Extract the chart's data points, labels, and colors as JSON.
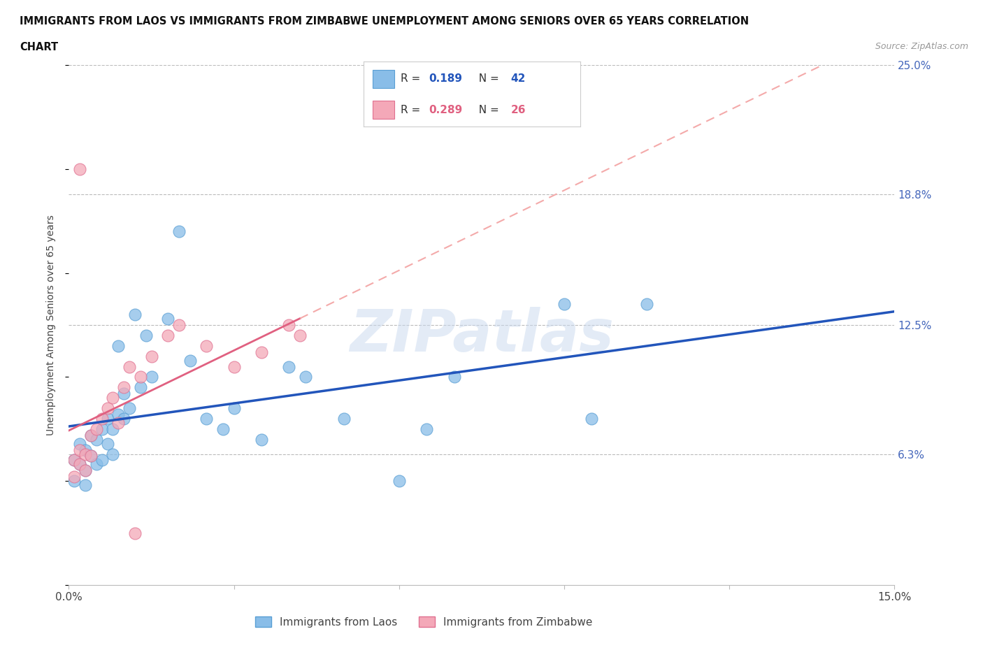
{
  "title_line1": "IMMIGRANTS FROM LAOS VS IMMIGRANTS FROM ZIMBABWE UNEMPLOYMENT AMONG SENIORS OVER 65 YEARS CORRELATION",
  "title_line2": "CHART",
  "source": "Source: ZipAtlas.com",
  "ylabel": "Unemployment Among Seniors over 65 years",
  "xlim": [
    0.0,
    0.15
  ],
  "ylim": [
    0.0,
    0.25
  ],
  "ytick_positions": [
    0.063,
    0.125,
    0.188,
    0.25
  ],
  "ytick_labels": [
    "6.3%",
    "12.5%",
    "18.8%",
    "25.0%"
  ],
  "grid_color": "#cccccc",
  "background_color": "#ffffff",
  "laos_color": "#89BDE8",
  "laos_color_edge": "#5A9FD4",
  "zimbabwe_color": "#F4A8B8",
  "zimbabwe_color_edge": "#E07090",
  "laos_R": 0.189,
  "laos_N": 42,
  "zimbabwe_R": 0.289,
  "zimbabwe_N": 26,
  "laos_trend_color": "#2255BB",
  "zimbabwe_trend_color": "#E06080",
  "zimbabwe_trend_dash_color": "#F4AAAA",
  "watermark": "ZIPatlas",
  "laos_x": [
    0.001,
    0.001,
    0.002,
    0.002,
    0.003,
    0.003,
    0.003,
    0.004,
    0.004,
    0.005,
    0.005,
    0.006,
    0.006,
    0.007,
    0.007,
    0.008,
    0.008,
    0.009,
    0.009,
    0.01,
    0.01,
    0.011,
    0.012,
    0.013,
    0.014,
    0.015,
    0.018,
    0.02,
    0.022,
    0.025,
    0.028,
    0.03,
    0.035,
    0.04,
    0.043,
    0.05,
    0.06,
    0.065,
    0.07,
    0.09,
    0.095,
    0.105
  ],
  "laos_y": [
    0.06,
    0.05,
    0.058,
    0.068,
    0.055,
    0.065,
    0.048,
    0.062,
    0.072,
    0.058,
    0.07,
    0.06,
    0.075,
    0.068,
    0.08,
    0.063,
    0.075,
    0.115,
    0.082,
    0.08,
    0.092,
    0.085,
    0.13,
    0.095,
    0.12,
    0.1,
    0.128,
    0.17,
    0.108,
    0.08,
    0.075,
    0.085,
    0.07,
    0.105,
    0.1,
    0.08,
    0.05,
    0.075,
    0.1,
    0.135,
    0.08,
    0.135
  ],
  "zimbabwe_x": [
    0.001,
    0.001,
    0.002,
    0.002,
    0.003,
    0.003,
    0.004,
    0.004,
    0.005,
    0.006,
    0.007,
    0.008,
    0.009,
    0.01,
    0.011,
    0.013,
    0.015,
    0.018,
    0.02,
    0.025,
    0.03,
    0.035,
    0.04,
    0.042,
    0.002,
    0.012
  ],
  "zimbabwe_y": [
    0.06,
    0.052,
    0.065,
    0.058,
    0.063,
    0.055,
    0.062,
    0.072,
    0.075,
    0.08,
    0.085,
    0.09,
    0.078,
    0.095,
    0.105,
    0.1,
    0.11,
    0.12,
    0.125,
    0.115,
    0.105,
    0.112,
    0.125,
    0.12,
    0.2,
    0.025
  ]
}
